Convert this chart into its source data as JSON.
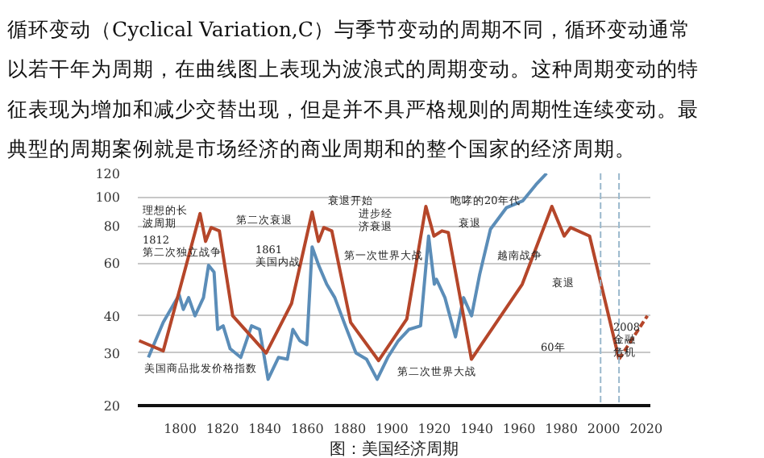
{
  "chart_data": {
    "type": "line",
    "title": "循环变动（Cyclical Variation,C）与季节变动的周期不同，循环变动通常以若干年为周期，在曲线图上表现为波浪式的周期变动。这种周期变动的特征表现为增加和减少交替出现，但是并不具严格规则的周期性连续变动。最典型的周期案例就是市场经济的商业周期和的整个国家的经济周期。",
    "log": "y",
    "xlim": [
      1780,
      2022
    ],
    "ylim": [
      20,
      120
    ],
    "xticks": [
      1800,
      1820,
      1840,
      1860,
      1880,
      1900,
      1920,
      1940,
      1960,
      1980,
      2000,
      2020
    ],
    "yticks": [
      20,
      30,
      40,
      60,
      80,
      100,
      120
    ],
    "grid": "y",
    "line_style": "solid",
    "series": [
      {
        "color": "#5b8db8",
        "x": [
          1785,
          1792,
          1799.5,
          1801.5,
          1804,
          1807,
          1811,
          1813.4,
          1816,
          1817.7,
          1820.3,
          1823.6,
          1828.6,
          1833.7,
          1837.5,
          1841.5,
          1846.4,
          1850.6,
          1853.2,
          1856.5,
          1859.8,
          1862.3,
          1865.4,
          1869.2,
          1873,
          1878,
          1883,
          1888,
          1893,
          1898,
          1903,
          1908,
          1913.5,
          1917.3,
          1920,
          1921,
          1925,
          1930,
          1933.8,
          1937.6,
          1941.4,
          1946.5,
          1954,
          1961.7,
          1968,
          1973
        ],
        "values": [
          29,
          38,
          47,
          42,
          46,
          40,
          46,
          59,
          56,
          36,
          37,
          31,
          29,
          37,
          36,
          24.5,
          29,
          28.6,
          36,
          33,
          32,
          68,
          59,
          51,
          46,
          37,
          30,
          28.6,
          24.5,
          29,
          33,
          36,
          37,
          74,
          51,
          53,
          46,
          34,
          46,
          40,
          55,
          78,
          92,
          97,
          110,
          120
        ]
      },
      {
        "color": "#b5462a",
        "x": [
          1780.6,
          1792,
          1809.4,
          1812,
          1814.6,
          1818.5,
          1824.8,
          1840.6,
          1852.6,
          1862.3,
          1865.3,
          1867.8,
          1871.6,
          1880.5,
          1893.7,
          1907,
          1916,
          1919.8,
          1923.6,
          1926.6,
          1937.5,
          1961.5,
          1975.5,
          1981.3,
          1984.3,
          1993.3,
          2007.2
        ],
        "values": [
          33,
          30.5,
          88,
          71,
          79,
          77,
          40,
          30,
          44,
          89,
          71,
          79,
          77,
          38,
          28.3,
          39,
          93,
          74,
          77,
          76,
          28.6,
          51,
          93,
          74,
          79,
          74,
          28.6
        ]
      },
      {
        "color": "#b5462a",
        "line_style": "dashed",
        "x": [
          2007.2,
          2020.6
        ],
        "values": [
          28.6,
          40
        ]
      }
    ],
    "ref_lines": [
      {
        "axis": "x",
        "value": 1998.5,
        "color": "#9ab8cc",
        "line_style": "dashed"
      },
      {
        "axis": "x",
        "value": 2007.2,
        "color": "#9ab8cc",
        "line_style": "dashed"
      }
    ],
    "annotations": [
      "理想的长波周期",
      "1812第二次独立战争",
      "第二次衰退",
      "美国商品批发价格指数",
      "1861美国内战",
      "衰退开始",
      "进步经济衰退",
      "第一次世界大战",
      "第二次世界大战",
      "咆哮的20年代",
      "衰退",
      "越南战争",
      "衰退",
      "60年",
      "2008金融危机",
      "图：美国经济周期"
    ]
  }
}
